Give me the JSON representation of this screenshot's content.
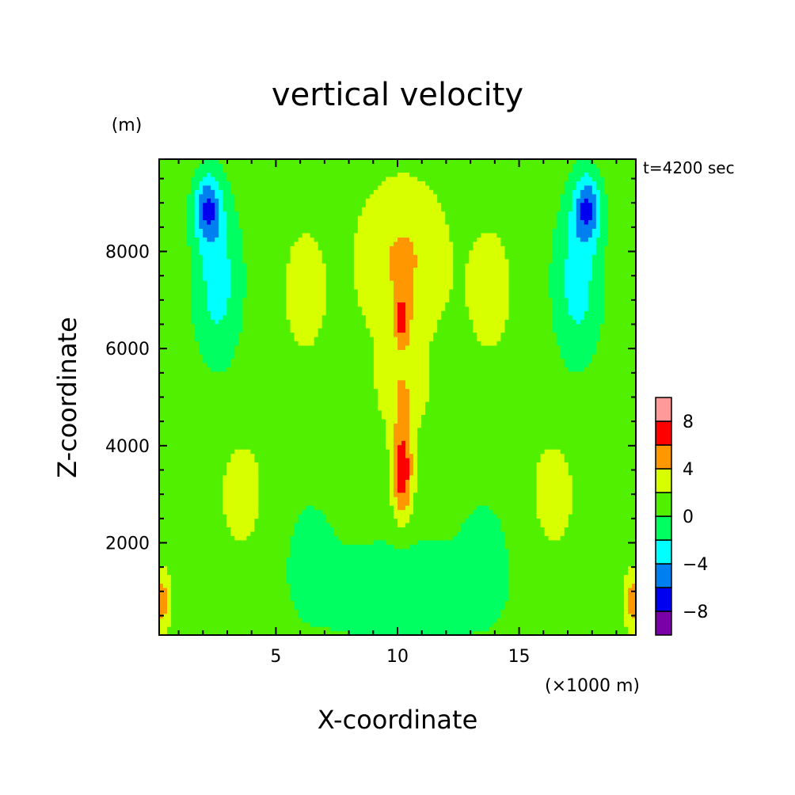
{
  "chart_data": {
    "type": "heatmap",
    "title": "vertical velocity",
    "xlabel": "X-coordinate",
    "ylabel": "Z-coordinate",
    "x_unit": "(×1000 m)",
    "y_unit": "(m)",
    "time_label": "t=4200 sec",
    "xlim": [
      0.2,
      19.8
    ],
    "ylim": [
      100,
      9900
    ],
    "x_ticks": [
      5,
      10,
      15
    ],
    "y_ticks": [
      2000,
      4000,
      6000,
      8000
    ],
    "colorbar": {
      "levels": [
        -10,
        -8,
        -6,
        -4,
        -2,
        0,
        2,
        4,
        6,
        8,
        10
      ],
      "labels": [
        -8,
        -4,
        0,
        4,
        8
      ],
      "colors": [
        "#7a00a8",
        "#0000f0",
        "#0080f0",
        "#00ffff",
        "#00ff60",
        "#50f000",
        "#d8ff00",
        "#ff9800",
        "#ff0000",
        "#ff9a9a"
      ]
    },
    "features": [
      {
        "type": "updraft_core",
        "x": 10.2,
        "z": 3500,
        "peak": 7
      },
      {
        "type": "updraft_upper",
        "x": 10.2,
        "z": 6600,
        "peak": 5
      },
      {
        "type": "downdraft",
        "x": 2.1,
        "z": 8900,
        "peak": -9
      },
      {
        "type": "downdraft",
        "x": 18.3,
        "z": 8900,
        "peak": -9
      },
      {
        "type": "surface_updraft",
        "x": 0.3,
        "z": 700,
        "peak": 5
      },
      {
        "type": "surface_updraft",
        "x": 19.7,
        "z": 700,
        "peak": 3
      }
    ]
  }
}
